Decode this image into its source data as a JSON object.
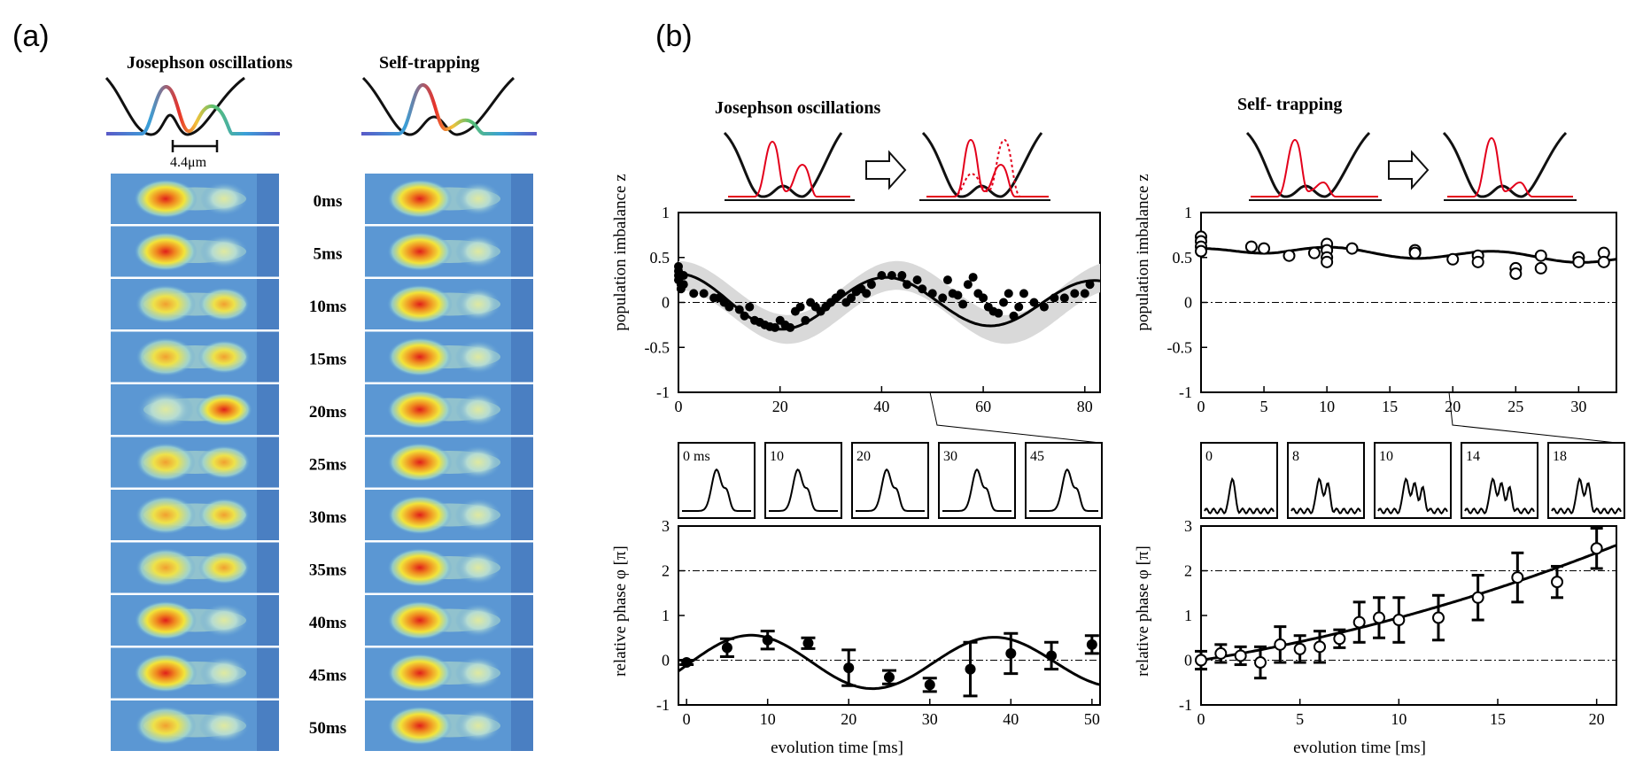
{
  "panel_a": {
    "label": "(a)",
    "title_left": "Josephson oscillations",
    "title_right": "Self-trapping",
    "spacing_label": "4.4μm",
    "time_labels": [
      "0ms",
      "5ms",
      "10ms",
      "15ms",
      "20ms",
      "25ms",
      "30ms",
      "35ms",
      "40ms",
      "45ms",
      "50ms"
    ],
    "left_ratio": [
      0.72,
      0.7,
      0.52,
      0.45,
      0.22,
      0.44,
      0.52,
      0.5,
      0.63,
      0.7,
      0.56
    ],
    "right_ratio": [
      0.8,
      0.82,
      0.86,
      0.8,
      0.84,
      0.8,
      0.78,
      0.82,
      0.8,
      0.8,
      0.8
    ]
  },
  "panel_b": {
    "label": "(b)",
    "title_left": "Josephson oscillations",
    "title_right": "Self- trapping",
    "ylabel_top": "population imbalance z",
    "ylabel_bottom": "relative phase φ [π]",
    "xlabel": "evolution time [ms]",
    "insets_left": [
      "0 ms",
      "10",
      "20",
      "30",
      "45"
    ],
    "insets_right": [
      "0",
      "8",
      "10",
      "14",
      "18"
    ]
  },
  "colors": {
    "fit": "#000000",
    "band": "#d9d9d9",
    "potential": "#111111",
    "density": "#e3001b"
  },
  "chart_data": [
    {
      "type": "scatter",
      "title": "Josephson oscillations",
      "xlabel": "",
      "ylabel": "population imbalance z",
      "xlim": [
        0,
        83
      ],
      "ylim": [
        -1,
        1
      ],
      "xticks": [
        "0",
        "20",
        "40",
        "60",
        "80"
      ],
      "yticks": [
        "1",
        "0.5",
        "0",
        "-0.5",
        "-1"
      ],
      "series": [
        {
          "name": "data",
          "x": [
            0,
            0,
            0,
            0,
            0.5,
            0.5,
            1,
            1,
            3,
            5,
            7,
            8,
            9,
            10,
            12,
            13,
            14,
            15,
            16,
            17,
            18,
            19,
            20,
            21,
            22,
            23,
            24,
            25,
            26,
            27,
            28,
            29,
            30,
            31,
            32,
            33,
            34,
            35,
            36,
            37,
            38,
            40,
            42,
            44,
            45,
            47,
            48,
            50,
            52,
            53,
            54,
            55,
            56,
            57,
            58,
            59,
            60,
            61,
            62,
            63,
            64,
            65,
            66,
            67,
            68,
            70,
            72,
            74,
            76,
            78,
            80,
            81
          ],
          "y": [
            0.4,
            0.35,
            0.3,
            0.25,
            0.2,
            0.15,
            0.3,
            0.2,
            0.1,
            0.1,
            0.05,
            0.05,
            0.0,
            -0.05,
            -0.08,
            -0.15,
            -0.05,
            -0.2,
            -0.22,
            -0.25,
            -0.27,
            -0.28,
            -0.2,
            -0.25,
            -0.28,
            -0.1,
            -0.05,
            -0.2,
            0.0,
            -0.05,
            -0.1,
            -0.05,
            0.0,
            0.05,
            0.1,
            0.0,
            0.05,
            0.12,
            0.15,
            0.1,
            0.2,
            0.3,
            0.3,
            0.3,
            0.2,
            0.25,
            0.15,
            0.1,
            0.05,
            0.25,
            0.1,
            0.08,
            -0.02,
            0.2,
            0.28,
            0.1,
            0.05,
            -0.05,
            -0.1,
            -0.12,
            0.0,
            0.1,
            -0.15,
            -0.05,
            0.1,
            0.0,
            -0.05,
            0.05,
            0.05,
            0.1,
            0.1,
            0.2
          ]
        }
      ]
    },
    {
      "type": "scatter",
      "title": "Self- trapping",
      "ylabel": "population imbalance z",
      "xlim": [
        0,
        33
      ],
      "ylim": [
        -1,
        1
      ],
      "xticks": [
        "0",
        "5",
        "10",
        "15",
        "20",
        "25",
        "30"
      ],
      "yticks": [
        "1",
        "0.5",
        "0",
        "-0.5",
        "-1"
      ],
      "series": [
        {
          "name": "data",
          "x": [
            0,
            0,
            0,
            0,
            4,
            5,
            7,
            9,
            10,
            10,
            10,
            10,
            12,
            17,
            17,
            20,
            22,
            22,
            25,
            25,
            27,
            27,
            30,
            30,
            32,
            32
          ],
          "y": [
            0.73,
            0.68,
            0.62,
            0.57,
            0.62,
            0.6,
            0.52,
            0.55,
            0.65,
            0.58,
            0.5,
            0.45,
            0.6,
            0.58,
            0.55,
            0.48,
            0.52,
            0.45,
            0.38,
            0.32,
            0.52,
            0.38,
            0.5,
            0.45,
            0.55,
            0.45
          ]
        }
      ]
    },
    {
      "type": "line",
      "ylabel": "relative phase φ [π]",
      "xlabel": "evolution time [ms]",
      "xlim": [
        -1,
        51
      ],
      "ylim": [
        -1,
        3
      ],
      "xticks": [
        "0",
        "10",
        "20",
        "30",
        "40",
        "50"
      ],
      "yticks": [
        "3",
        "2",
        "1",
        "0",
        "-1"
      ],
      "series": [
        {
          "name": "data",
          "x": [
            0,
            5,
            10,
            15,
            20,
            25,
            30,
            35,
            40,
            45,
            50
          ],
          "y": [
            -0.05,
            0.28,
            0.45,
            0.38,
            -0.17,
            -0.38,
            -0.55,
            -0.2,
            0.15,
            0.1,
            0.35
          ],
          "err": [
            0.05,
            0.2,
            0.2,
            0.12,
            0.4,
            0.15,
            0.15,
            0.6,
            0.45,
            0.3,
            0.2
          ]
        }
      ]
    },
    {
      "type": "line",
      "ylabel": "relative phase φ [π]",
      "xlabel": "evolution time [ms]",
      "xlim": [
        0,
        21
      ],
      "ylim": [
        -1,
        3
      ],
      "xticks": [
        "0",
        "5",
        "10",
        "15",
        "20"
      ],
      "yticks": [
        "3",
        "2",
        "1",
        "0",
        "-1"
      ],
      "series": [
        {
          "name": "data",
          "x": [
            0,
            1,
            2,
            3,
            4,
            5,
            6,
            7,
            8,
            9,
            10,
            12,
            14,
            16,
            18,
            20
          ],
          "y": [
            0.0,
            0.15,
            0.1,
            -0.05,
            0.35,
            0.25,
            0.3,
            0.48,
            0.85,
            0.95,
            0.9,
            0.95,
            1.4,
            1.85,
            1.75,
            2.5
          ],
          "err": [
            0.2,
            0.2,
            0.2,
            0.35,
            0.4,
            0.3,
            0.35,
            0.2,
            0.45,
            0.45,
            0.5,
            0.5,
            0.5,
            0.55,
            0.35,
            0.45
          ]
        }
      ]
    }
  ]
}
